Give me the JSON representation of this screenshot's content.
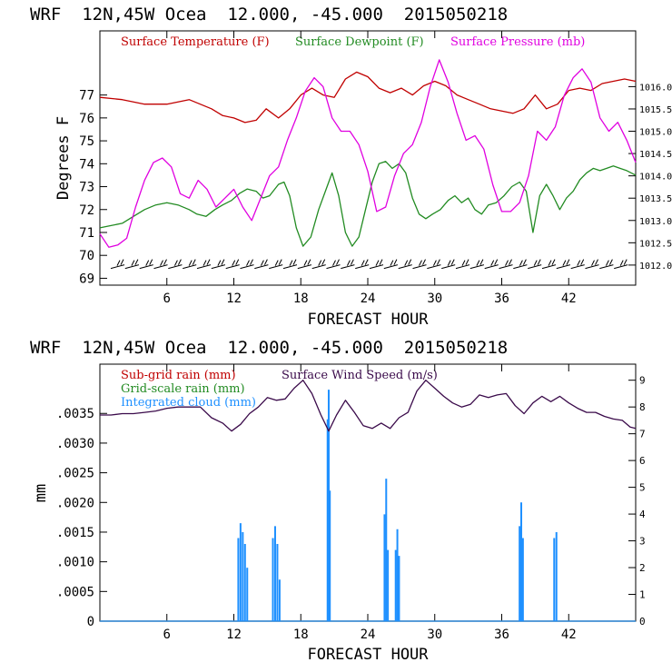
{
  "chart_data": [
    {
      "type": "line",
      "title": "WRF  12N,45W Ocea  12.000, -45.000  2015050218",
      "xlabel": "FORECAST HOUR",
      "ylabel": "Degrees F",
      "xlim": [
        0,
        48
      ],
      "ylim": [
        68.7,
        79.8
      ],
      "y2lim": [
        1011.55,
        1017.25
      ],
      "x_ticks": [
        "6",
        "12",
        "18",
        "24",
        "30",
        "36",
        "42"
      ],
      "x_tick_values": [
        6,
        12,
        18,
        24,
        30,
        36,
        42
      ],
      "y_ticks": [
        "69",
        "70",
        "71",
        "72",
        "73",
        "74",
        "75",
        "76",
        "77"
      ],
      "y_tick_values": [
        69,
        70,
        71,
        72,
        73,
        74,
        75,
        76,
        77
      ],
      "y2_ticks": [
        "1012.0",
        "1012.5",
        "1013.0",
        "1013.5",
        "1014.0",
        "1014.5",
        "1015.0",
        "1015.5",
        "1016.0"
      ],
      "y2_tick_values": [
        1012.0,
        1012.5,
        1013.0,
        1013.5,
        1014.0,
        1014.5,
        1015.0,
        1015.5,
        1016.0
      ],
      "series": [
        {
          "name": "Surface Temperature (F)",
          "color": "#c00000",
          "axis": "left",
          "x": [
            0,
            2,
            4,
            6,
            8,
            10,
            11,
            12,
            13,
            14,
            14.9,
            16,
            17,
            18,
            19,
            20,
            21,
            22,
            23,
            24,
            25,
            26,
            27,
            28,
            29,
            30,
            31,
            32,
            33,
            34,
            35,
            36,
            37,
            38,
            39,
            40,
            41,
            42,
            43,
            44,
            45,
            46,
            47,
            48
          ],
          "y": [
            76.9,
            76.8,
            76.6,
            76.6,
            76.8,
            76.4,
            76.1,
            76.0,
            75.8,
            75.9,
            76.4,
            76.0,
            76.4,
            77.0,
            77.3,
            77.0,
            76.9,
            77.7,
            78.0,
            77.8,
            77.3,
            77.1,
            77.3,
            77.0,
            77.4,
            77.6,
            77.4,
            77.0,
            76.8,
            76.6,
            76.4,
            76.3,
            76.2,
            76.4,
            77.0,
            76.4,
            76.6,
            77.2,
            77.3,
            77.2,
            77.5,
            77.6,
            77.7,
            77.6
          ]
        },
        {
          "name": "Surface Dewpoint (F)",
          "color": "#228b22",
          "axis": "left",
          "x": [
            0,
            1,
            2,
            3,
            4,
            5,
            6,
            7,
            8,
            8.7,
            9.5,
            10.3,
            11,
            11.8,
            12.5,
            13.2,
            14,
            14.6,
            15.2,
            16,
            16.5,
            17,
            17.6,
            18.2,
            18.9,
            19.6,
            20.2,
            20.8,
            21.4,
            22,
            22.6,
            23.2,
            23.8,
            24.4,
            25,
            25.6,
            26.2,
            26.8,
            27.4,
            28,
            28.6,
            29.2,
            29.8,
            30.5,
            31.2,
            31.8,
            32.4,
            33,
            33.6,
            34.2,
            34.8,
            35.5,
            36.2,
            36.9,
            37.6,
            38.2,
            38.8,
            39.4,
            40,
            40.6,
            41.2,
            41.8,
            42.4,
            43,
            43.6,
            44.2,
            44.8,
            45.4,
            46,
            46.6,
            47.2,
            48
          ],
          "y": [
            71.2,
            71.3,
            71.4,
            71.7,
            72.0,
            72.2,
            72.3,
            72.2,
            72.0,
            71.8,
            71.7,
            72.0,
            72.2,
            72.4,
            72.7,
            72.9,
            72.8,
            72.5,
            72.6,
            73.1,
            73.2,
            72.6,
            71.2,
            70.4,
            70.8,
            72.0,
            72.8,
            73.6,
            72.6,
            71.0,
            70.4,
            70.8,
            72.0,
            73.2,
            74.0,
            74.1,
            73.8,
            74.0,
            73.6,
            72.5,
            71.8,
            71.6,
            71.8,
            72.0,
            72.4,
            72.6,
            72.3,
            72.5,
            72.0,
            71.8,
            72.2,
            72.3,
            72.6,
            73.0,
            73.2,
            72.8,
            71.0,
            72.6,
            73.1,
            72.6,
            72.0,
            72.5,
            72.8,
            73.3,
            73.6,
            73.8,
            73.7,
            73.8,
            73.9,
            73.8,
            73.7,
            73.5
          ]
        },
        {
          "name": "Surface Pressure (mb)",
          "color": "#e000e0",
          "axis": "right",
          "x": [
            0,
            0.8,
            1.6,
            2.4,
            3.2,
            4,
            4.8,
            5.6,
            6.4,
            7.2,
            8,
            8.8,
            9.6,
            10.4,
            11.2,
            12,
            12.8,
            13.6,
            14.4,
            15.2,
            16,
            16.8,
            17.6,
            18.4,
            19.2,
            20,
            20.8,
            21.6,
            22.4,
            23.2,
            24,
            24.8,
            25.6,
            26.4,
            27.2,
            28,
            28.8,
            29.6,
            30.4,
            31.2,
            32,
            32.8,
            33.6,
            34.4,
            35.2,
            36,
            36.8,
            37.6,
            38.4,
            39.2,
            40,
            40.8,
            41.6,
            42.4,
            43.2,
            44,
            44.8,
            45.6,
            46.4,
            47.2,
            48
          ],
          "y": [
            1012.7,
            1012.4,
            1012.45,
            1012.6,
            1013.3,
            1013.9,
            1014.3,
            1014.4,
            1014.2,
            1013.6,
            1013.5,
            1013.9,
            1013.7,
            1013.3,
            1013.5,
            1013.7,
            1013.3,
            1013.0,
            1013.5,
            1014.0,
            1014.2,
            1014.8,
            1015.3,
            1015.9,
            1016.2,
            1016.0,
            1015.3,
            1015.0,
            1015.0,
            1014.7,
            1014.1,
            1013.2,
            1013.3,
            1014.0,
            1014.5,
            1014.7,
            1015.2,
            1016.0,
            1016.6,
            1016.1,
            1015.4,
            1014.8,
            1014.9,
            1014.6,
            1013.8,
            1013.2,
            1013.2,
            1013.4,
            1014.0,
            1015.0,
            1014.8,
            1015.1,
            1015.8,
            1016.2,
            1016.4,
            1016.1,
            1015.3,
            1015.0,
            1015.2,
            1014.8,
            1014.3
          ]
        }
      ],
      "wind_barbs": {
        "count": 36,
        "y": 69.55,
        "color": "#000000"
      }
    },
    {
      "type": "line",
      "title": "WRF  12N,45W Ocea  12.000, -45.000  2015050218",
      "xlabel": "FORECAST HOUR",
      "ylabel": "mm",
      "xlim": [
        0,
        48
      ],
      "ylim": [
        0,
        0.00433
      ],
      "y2lim": [
        0,
        9.6
      ],
      "x_ticks": [
        "6",
        "12",
        "18",
        "24",
        "30",
        "36",
        "42"
      ],
      "x_tick_values": [
        6,
        12,
        18,
        24,
        30,
        36,
        42
      ],
      "y_ticks": [
        "0",
        ".0005",
        ".0010",
        ".0015",
        ".0020",
        ".0025",
        ".0030",
        ".0035"
      ],
      "y_tick_values": [
        0,
        0.0005,
        0.001,
        0.0015,
        0.002,
        0.0025,
        0.003,
        0.0035
      ],
      "y2_ticks": [
        "0",
        "1",
        "2",
        "3",
        "4",
        "5",
        "6",
        "7",
        "8",
        "9"
      ],
      "y2_tick_values": [
        0,
        1,
        2,
        3,
        4,
        5,
        6,
        7,
        8,
        9
      ],
      "series": [
        {
          "name": "Sub-grid rain (mm)",
          "color": "#c00000",
          "axis": "left",
          "x": [
            0,
            48
          ],
          "y": [
            0,
            0
          ]
        },
        {
          "name": "Grid-scale rain (mm)",
          "color": "#228b22",
          "axis": "left",
          "x": [
            0,
            48
          ],
          "y": [
            0,
            0
          ]
        },
        {
          "name": "Integrated cloud (mm)",
          "color": "#1e90ff",
          "axis": "left",
          "spikes": [
            [
              12.4,
              0.0014
            ],
            [
              12.6,
              0.00165
            ],
            [
              12.8,
              0.0015
            ],
            [
              13.0,
              0.0013
            ],
            [
              13.2,
              0.0009
            ],
            [
              15.5,
              0.0014
            ],
            [
              15.7,
              0.0016
            ],
            [
              15.9,
              0.0013
            ],
            [
              16.1,
              0.0007
            ],
            [
              20.4,
              0.0034
            ],
            [
              20.5,
              0.0039
            ],
            [
              20.6,
              0.0022
            ],
            [
              25.5,
              0.0018
            ],
            [
              25.65,
              0.0024
            ],
            [
              25.8,
              0.0012
            ],
            [
              26.5,
              0.0012
            ],
            [
              26.65,
              0.00155
            ],
            [
              26.8,
              0.0011
            ],
            [
              37.6,
              0.0016
            ],
            [
              37.75,
              0.002
            ],
            [
              37.9,
              0.0014
            ],
            [
              40.7,
              0.0014
            ],
            [
              40.9,
              0.0015
            ]
          ]
        },
        {
          "name": "Surface Wind Speed (m/s)",
          "color": "#3a0a4a",
          "axis": "right",
          "x": [
            0,
            1,
            2,
            3,
            4,
            5,
            6,
            7,
            8,
            9,
            10,
            11,
            11.8,
            12.6,
            13.4,
            14.2,
            15,
            15.8,
            16.6,
            17.4,
            18.2,
            19,
            19.8,
            20.5,
            21.2,
            22,
            22.8,
            23.6,
            24.4,
            25.2,
            26,
            26.8,
            27.6,
            28.4,
            29.2,
            30,
            30.8,
            31.6,
            32.4,
            33.2,
            34,
            34.8,
            35.6,
            36.4,
            37.2,
            38,
            38.8,
            39.6,
            40.4,
            41.2,
            42,
            42.8,
            43.6,
            44.4,
            45.2,
            46,
            46.8,
            47.5,
            48
          ],
          "y": [
            7.7,
            7.7,
            7.75,
            7.75,
            7.8,
            7.85,
            7.95,
            8.0,
            8.0,
            8.0,
            7.6,
            7.4,
            7.1,
            7.35,
            7.75,
            8.0,
            8.35,
            8.25,
            8.3,
            8.7,
            9.0,
            8.5,
            7.7,
            7.1,
            7.7,
            8.25,
            7.8,
            7.3,
            7.2,
            7.4,
            7.2,
            7.6,
            7.8,
            8.6,
            9.0,
            8.7,
            8.4,
            8.15,
            8.0,
            8.1,
            8.45,
            8.35,
            8.45,
            8.5,
            8.05,
            7.75,
            8.15,
            8.4,
            8.2,
            8.4,
            8.15,
            7.95,
            7.8,
            7.8,
            7.65,
            7.55,
            7.5,
            7.25,
            7.2
          ]
        }
      ]
    }
  ]
}
